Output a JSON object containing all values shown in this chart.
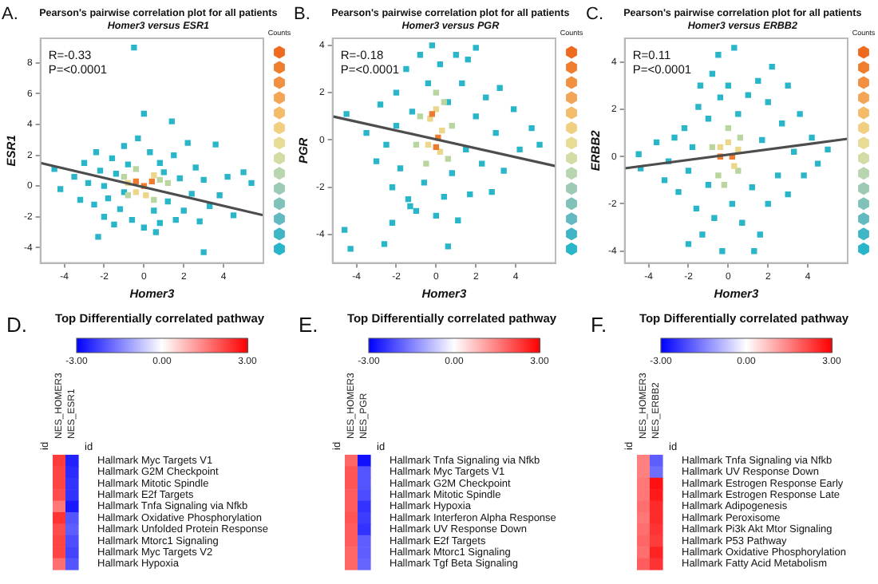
{
  "chart_data": [
    {
      "type": "scatter",
      "title": "Pearson's pairwise correlation plot for all patients",
      "subtitle": "Homer3 versus ESR1",
      "xlabel": "Homer3",
      "ylabel": "ESR1",
      "clabel": "Counts",
      "marker": "square",
      "annotations": [
        "A.",
        "R=-0.33",
        "P=<0.0001"
      ],
      "xlim": [
        -5.2,
        6
      ],
      "xticks": [
        -4,
        -2,
        0,
        2,
        4
      ],
      "ylim": [
        -5,
        9.6
      ],
      "yticks": [
        -4,
        -2,
        0,
        2,
        4,
        6,
        8
      ],
      "series": [
        {
          "type": "scatter",
          "color": "#29b6c9",
          "x": [
            -4.5,
            -4.2,
            -3.5,
            -3.2,
            -3,
            -2.8,
            -2.5,
            -2.4,
            -2.2,
            -2,
            -2,
            -1.8,
            -1.6,
            -1.5,
            -1.4,
            -1.2,
            -1,
            -1,
            -0.8,
            -0.6,
            -0.5,
            -0.3,
            0,
            0,
            0.3,
            0.5,
            0.8,
            0.8,
            1,
            1.2,
            1.4,
            1.5,
            1.6,
            1.8,
            2,
            2.2,
            2.4,
            2.6,
            2.8,
            3,
            3,
            3.3,
            3.6,
            3.8,
            4.2,
            4.5,
            5,
            5.4,
            -2.3,
            0.6
          ],
          "values": [
            1.1,
            -0.2,
            0.6,
            -0.9,
            1.5,
            0.2,
            -1.2,
            2.2,
            1,
            -2,
            0,
            -0.8,
            1.8,
            -2.5,
            0.8,
            -1.5,
            2.6,
            -0.4,
            1.4,
            -2.2,
            9,
            3.1,
            4.7,
            -2.7,
            2.2,
            -1.6,
            1.5,
            -2.4,
            0.9,
            -1,
            4.2,
            2,
            -2.2,
            0.5,
            -1.6,
            2.8,
            -0.5,
            1.2,
            -2.3,
            -4.3,
            0.4,
            -1.3,
            2.7,
            -0.6,
            0.6,
            -1.9,
            0.9,
            0.2,
            -3.3,
            -3
          ]
        },
        {
          "type": "scatter",
          "color": "#b9d6a0",
          "x": [
            -1,
            -0.8,
            0.8,
            0.5,
            -0.4,
            1.2
          ],
          "values": [
            0.6,
            -0.6,
            0.4,
            -0.9,
            1.1,
            0.2
          ]
        },
        {
          "type": "scatter",
          "color": "#ebd68a",
          "x": [
            -0.8,
            0.5,
            0.1,
            -0.4
          ],
          "values": [
            0.2,
            0.7,
            -0.6,
            -0.4
          ]
        },
        {
          "type": "scatter",
          "color": "#ee7a2e",
          "x": [
            -0.4,
            0,
            0.4
          ],
          "values": [
            0.3,
            0,
            0.3
          ]
        },
        {
          "type": "line",
          "color": "#4d4d4d",
          "marker": "none",
          "x": [
            -5.2,
            6
          ],
          "values": [
            1.5,
            -1.9
          ]
        }
      ]
    },
    {
      "type": "scatter",
      "title": "Pearson's pairwise correlation plot for all patients",
      "subtitle": "Homer3 versus PGR",
      "xlabel": "Homer3",
      "ylabel": "PGR",
      "clabel": "Counts",
      "marker": "square",
      "annotations": [
        "B.",
        "R=-0.18",
        "P=<0.0001"
      ],
      "xlim": [
        -5.2,
        6
      ],
      "xticks": [
        -4,
        -2,
        0,
        2,
        4
      ],
      "ylim": [
        -5.2,
        4.3
      ],
      "yticks": [
        -4,
        -2,
        0,
        2,
        4
      ],
      "series": [
        {
          "type": "scatter",
          "color": "#29b6c9",
          "x": [
            -4.5,
            -4.6,
            -4.3,
            -3.5,
            -3,
            -2.8,
            -2.6,
            -2.5,
            -2.2,
            -2,
            -2,
            -1.8,
            -1.5,
            -1.4,
            -1.2,
            -1,
            -0.8,
            -0.6,
            -0.4,
            -0.2,
            0,
            0.2,
            0.4,
            0.6,
            0.8,
            1,
            1.1,
            1.3,
            1.5,
            1.7,
            2,
            2,
            2.3,
            2.5,
            2.8,
            3,
            3.2,
            3.4,
            3.9,
            4.2,
            4.8,
            5.2,
            -2.2,
            0.6,
            -1.3,
            1.6
          ],
          "values": [
            1.1,
            -3.8,
            -4.6,
            0.3,
            -0.9,
            1.5,
            -4.4,
            -0.2,
            -2,
            2,
            0.6,
            -1.2,
            3,
            -2.5,
            1.2,
            -3,
            3.6,
            -1.8,
            2.4,
            4,
            -3.2,
            3.2,
            -2.4,
            1.6,
            -1.4,
            3.6,
            -3.4,
            2.4,
            -0.4,
            -2.3,
            3.9,
            1,
            -1,
            1.8,
            -2.2,
            0.3,
            2.2,
            -1.3,
            1.3,
            -0.4,
            0.5,
            -0.2,
            -3.5,
            -4.5,
            -2.8,
            3.4
          ]
        },
        {
          "type": "scatter",
          "color": "#b9d6a0",
          "x": [
            -0.8,
            0.6,
            -0.5,
            0.4,
            0,
            0.8,
            -1
          ],
          "values": [
            1,
            -0.8,
            -1,
            1.6,
            2,
            0.6,
            -0.2
          ]
        },
        {
          "type": "scatter",
          "color": "#ebd68a",
          "x": [
            -0.3,
            0.2,
            0,
            -0.4,
            0.3
          ],
          "values": [
            0.9,
            -0.5,
            1.3,
            -0.2,
            0.4
          ]
        },
        {
          "type": "scatter",
          "color": "#ee7a2e",
          "x": [
            -0.2,
            0,
            0.1
          ],
          "values": [
            1.1,
            -0.3,
            0.1
          ]
        },
        {
          "type": "line",
          "color": "#4d4d4d",
          "marker": "none",
          "x": [
            -5.2,
            6
          ],
          "values": [
            1,
            -1.1
          ]
        }
      ]
    },
    {
      "type": "scatter",
      "title": "Pearson's pairwise correlation plot for all patients",
      "subtitle": "Homer3 versus ERBB2",
      "xlabel": "Homer3",
      "ylabel": "ERBB2",
      "clabel": "Counts",
      "marker": "square",
      "annotations": [
        "C.",
        "R=0.11",
        "P=<0.0001"
      ],
      "xlim": [
        -5.2,
        6
      ],
      "xticks": [
        -4,
        -2,
        0,
        2,
        4
      ],
      "ylim": [
        -4.5,
        5
      ],
      "yticks": [
        -4,
        -2,
        0,
        2,
        4
      ],
      "series": [
        {
          "type": "scatter",
          "color": "#29b6c9",
          "x": [
            -4.5,
            -4.4,
            -3.6,
            -3.2,
            -3,
            -2.7,
            -2.5,
            -2.2,
            -2,
            -2,
            -1.8,
            -1.6,
            -1.5,
            -1.3,
            -1,
            -1,
            -0.8,
            -0.7,
            -0.5,
            -0.4,
            -0.3,
            0,
            0.2,
            0.3,
            0.5,
            0.7,
            1,
            1.2,
            1.3,
            1.5,
            1.7,
            2,
            2,
            2.2,
            2.5,
            2.7,
            3,
            3,
            3.3,
            3.6,
            3.8,
            4.2,
            4.5,
            5,
            1.6,
            -1.4
          ],
          "values": [
            0.1,
            -0.5,
            0.6,
            -1,
            -0.2,
            0.8,
            -1.5,
            1.2,
            -0.6,
            -3.7,
            0.4,
            -2.2,
            2.1,
            -3.3,
            1.6,
            -1.2,
            3.5,
            -2.6,
            4.3,
            2.5,
            -4,
            3,
            -2,
            4.6,
            1.8,
            -2.8,
            2.6,
            -1.3,
            -4,
            3.2,
            0.7,
            -2,
            2.3,
            3.8,
            -0.8,
            1.4,
            -1.6,
            3,
            0.2,
            1.8,
            -0.8,
            0.8,
            -0.3,
            0.3,
            -3.3,
            3
          ]
        },
        {
          "type": "scatter",
          "color": "#b9d6a0",
          "x": [
            -0.8,
            0.5,
            -0.5,
            0.6,
            0,
            -0.2
          ],
          "values": [
            0.4,
            -0.6,
            -0.8,
            0.8,
            1.2,
            -1.2
          ]
        },
        {
          "type": "scatter",
          "color": "#ebd68a",
          "x": [
            -0.4,
            0.3,
            0,
            0.5
          ],
          "values": [
            0.4,
            -0.4,
            0.6,
            0.3
          ]
        },
        {
          "type": "scatter",
          "color": "#ee7a2e",
          "x": [
            -0.4,
            0.2
          ],
          "values": [
            0,
            0
          ]
        },
        {
          "type": "line",
          "color": "#4d4d4d",
          "marker": "none",
          "x": [
            -5.2,
            6
          ],
          "values": [
            -0.5,
            0.75
          ]
        }
      ]
    },
    {
      "type": "heatmap",
      "title": "Top Differentially correlated pathway",
      "annotations": [
        "D."
      ],
      "ylabel": "id",
      "y2label": "id",
      "categories": [
        "NES_HOMER3",
        "NES_ESR1"
      ],
      "y_categories": [
        "Hallmark Myc Targets V1",
        "Hallmark G2M Checkpoint",
        "Hallmark Mitotic Spindle",
        "Hallmark E2f Targets",
        "Hallmark Tnfa Signaling via Nfkb",
        "Hallmark Oxidative Phosphorylation",
        "Hallmark Unfolded Protein Response",
        "Hallmark Mtorc1 Signaling",
        "Hallmark Myc Targets V2",
        "Hallmark Hypoxia"
      ],
      "cells": [
        [
          2.3,
          -2.6
        ],
        [
          2.2,
          -2.5
        ],
        [
          2.2,
          -2.4
        ],
        [
          2.1,
          -2.4
        ],
        [
          1.6,
          -2.7
        ],
        [
          2.4,
          -2
        ],
        [
          2.1,
          -1.9
        ],
        [
          2.2,
          -2.1
        ],
        [
          2.2,
          -2.2
        ],
        [
          1.7,
          -2
        ]
      ],
      "clim": [
        -3,
        3
      ],
      "cticks": [
        {
          "value": -3,
          "label": "-3.00"
        },
        {
          "value": 0,
          "label": "0.00"
        },
        {
          "value": 3,
          "label": "3.00"
        }
      ]
    },
    {
      "type": "heatmap",
      "title": "Top Differentially correlated pathway",
      "annotations": [
        "E."
      ],
      "ylabel": "id",
      "y2label": "id",
      "categories": [
        "NES_HOMER3",
        "NES_PGR"
      ],
      "y_categories": [
        "Hallmark Tnfa Signaling via Nfkb",
        "Hallmark Myc Targets V1",
        "Hallmark G2M Checkpoint",
        "Hallmark Mitotic Spindle",
        "Hallmark Hypoxia",
        "Hallmark Interferon Alpha Response",
        "Hallmark UV Response Down",
        "Hallmark E2f Targets",
        "Hallmark Mtorc1 Signaling",
        "Hallmark Tgf Beta Signaling"
      ],
      "cells": [
        [
          1.8,
          -2.8
        ],
        [
          2,
          -2
        ],
        [
          2,
          -2
        ],
        [
          1.9,
          -2.1
        ],
        [
          1.9,
          -2.4
        ],
        [
          2,
          -2.3
        ],
        [
          1.9,
          -2.4
        ],
        [
          1.9,
          -1.9
        ],
        [
          1.8,
          -1.9
        ],
        [
          1.8,
          -1.8
        ]
      ],
      "clim": [
        -3,
        3
      ],
      "cticks": [
        {
          "value": -3,
          "label": "-3.00"
        },
        {
          "value": 0,
          "label": "0.00"
        },
        {
          "value": 3,
          "label": "3.00"
        }
      ]
    },
    {
      "type": "heatmap",
      "title": "Top Differentially correlated pathway",
      "annotations": [
        "F."
      ],
      "ylabel": "id",
      "y2label": "id",
      "categories": [
        "NES_HOMER3",
        "NES_ERBB2"
      ],
      "y_categories": [
        "Hallmark Tnfa Signaling via Nfkb",
        "Hallmark UV Response Down",
        "Hallmark Estrogen Response Early",
        "Hallmark Estrogen Response Late",
        "Hallmark Adipogenesis",
        "Hallmark Peroxisome",
        "Hallmark Pi3k Akt Mtor Signaling",
        "Hallmark P53 Pathway",
        "Hallmark Oxidative Phosphorylation",
        "Hallmark Fatty Acid Metabolism"
      ],
      "cells": [
        [
          1.5,
          -1.9
        ],
        [
          1.5,
          -1.7
        ],
        [
          1.6,
          2.8
        ],
        [
          1.6,
          2.7
        ],
        [
          1.7,
          2.5
        ],
        [
          1.6,
          2.5
        ],
        [
          1.7,
          2.4
        ],
        [
          1.8,
          2.3
        ],
        [
          1.7,
          2.6
        ],
        [
          1.9,
          2.4
        ]
      ],
      "clim": [
        -3,
        3
      ],
      "cticks": [
        {
          "value": -3,
          "label": "-3.00"
        },
        {
          "value": 0,
          "label": "0.00"
        },
        {
          "value": 3,
          "label": "3.00"
        }
      ]
    }
  ]
}
